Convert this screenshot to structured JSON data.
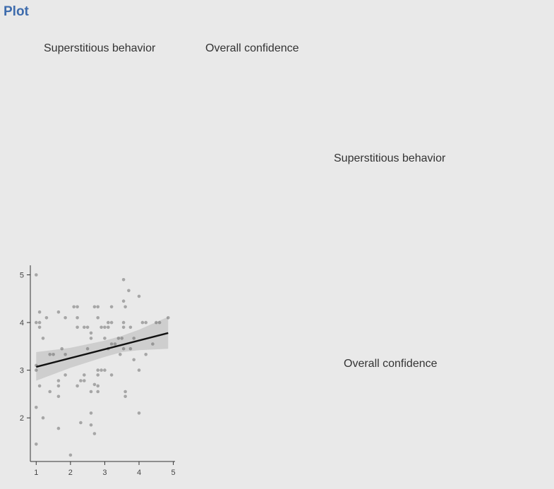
{
  "page": {
    "title": "Plot"
  },
  "matrix": {
    "column_labels": [
      "Superstitious behavior",
      "Overall confidence"
    ],
    "diagonal_labels": [
      "Superstitious behavior",
      "Overall confidence"
    ]
  },
  "chart_data": {
    "type": "scatter",
    "xlim": [
      0.85,
      5.05
    ],
    "ylim": [
      1.1,
      5.2
    ],
    "x_ticks": [
      1,
      2,
      3,
      4,
      5
    ],
    "y_ticks": [
      2,
      3,
      4,
      5
    ],
    "grid": false,
    "points": [
      [
        1.0,
        5.0
      ],
      [
        1.0,
        4.0
      ],
      [
        1.0,
        3.0
      ],
      [
        1.0,
        3.1
      ],
      [
        1.0,
        2.22
      ],
      [
        1.0,
        1.45
      ],
      [
        1.1,
        4.22
      ],
      [
        1.1,
        4.0
      ],
      [
        1.1,
        3.9
      ],
      [
        1.1,
        2.67
      ],
      [
        1.2,
        3.67
      ],
      [
        1.2,
        2.0
      ],
      [
        1.3,
        4.1
      ],
      [
        1.4,
        3.33
      ],
      [
        1.4,
        2.55
      ],
      [
        1.5,
        3.33
      ],
      [
        1.65,
        4.22
      ],
      [
        1.65,
        2.78
      ],
      [
        1.65,
        2.67
      ],
      [
        1.65,
        2.45
      ],
      [
        1.65,
        1.78
      ],
      [
        1.75,
        3.45
      ],
      [
        1.85,
        4.1
      ],
      [
        1.85,
        3.33
      ],
      [
        1.85,
        2.9
      ],
      [
        2.0,
        1.22
      ],
      [
        2.1,
        4.33
      ],
      [
        2.2,
        4.33
      ],
      [
        2.2,
        4.1
      ],
      [
        2.2,
        3.9
      ],
      [
        2.2,
        2.67
      ],
      [
        2.3,
        2.78
      ],
      [
        2.3,
        1.9
      ],
      [
        2.4,
        3.9
      ],
      [
        2.4,
        2.78
      ],
      [
        2.4,
        2.9
      ],
      [
        2.5,
        3.9
      ],
      [
        2.5,
        3.45
      ],
      [
        2.6,
        3.78
      ],
      [
        2.6,
        3.67
      ],
      [
        2.6,
        2.55
      ],
      [
        2.6,
        2.1
      ],
      [
        2.6,
        1.85
      ],
      [
        2.7,
        4.33
      ],
      [
        2.7,
        2.7
      ],
      [
        2.7,
        1.67
      ],
      [
        2.8,
        4.33
      ],
      [
        2.8,
        4.1
      ],
      [
        2.8,
        3.0
      ],
      [
        2.8,
        2.9
      ],
      [
        2.8,
        2.67
      ],
      [
        2.8,
        2.55
      ],
      [
        2.9,
        3.9
      ],
      [
        2.9,
        3.0
      ],
      [
        3.0,
        3.9
      ],
      [
        3.0,
        3.67
      ],
      [
        3.0,
        3.0
      ],
      [
        3.1,
        4.0
      ],
      [
        3.1,
        3.9
      ],
      [
        3.1,
        3.45
      ],
      [
        3.2,
        4.33
      ],
      [
        3.2,
        4.0
      ],
      [
        3.2,
        3.55
      ],
      [
        3.2,
        2.9
      ],
      [
        3.3,
        3.55
      ],
      [
        3.4,
        3.67
      ],
      [
        3.45,
        3.33
      ],
      [
        3.5,
        3.67
      ],
      [
        3.55,
        4.9
      ],
      [
        3.55,
        4.45
      ],
      [
        3.55,
        4.0
      ],
      [
        3.55,
        3.9
      ],
      [
        3.55,
        3.45
      ],
      [
        3.6,
        4.33
      ],
      [
        3.6,
        2.55
      ],
      [
        3.6,
        2.45
      ],
      [
        3.7,
        4.67
      ],
      [
        3.75,
        3.9
      ],
      [
        3.75,
        3.45
      ],
      [
        3.85,
        3.67
      ],
      [
        3.85,
        3.22
      ],
      [
        4.0,
        4.55
      ],
      [
        4.0,
        3.0
      ],
      [
        4.0,
        2.1
      ],
      [
        4.1,
        4.0
      ],
      [
        4.2,
        4.0
      ],
      [
        4.2,
        3.33
      ],
      [
        4.4,
        3.55
      ],
      [
        4.5,
        4.0
      ],
      [
        4.6,
        4.0
      ],
      [
        4.85,
        4.1
      ]
    ],
    "trend": {
      "x": [
        1.0,
        4.85
      ],
      "y": [
        3.07,
        3.78
      ]
    },
    "ci_band": {
      "x": [
        1.0,
        2.0,
        3.0,
        3.5,
        4.0,
        4.85
      ],
      "lower": [
        2.78,
        3.05,
        3.28,
        3.38,
        3.42,
        3.45
      ],
      "upper": [
        3.38,
        3.47,
        3.62,
        3.72,
        3.85,
        4.12
      ]
    }
  }
}
